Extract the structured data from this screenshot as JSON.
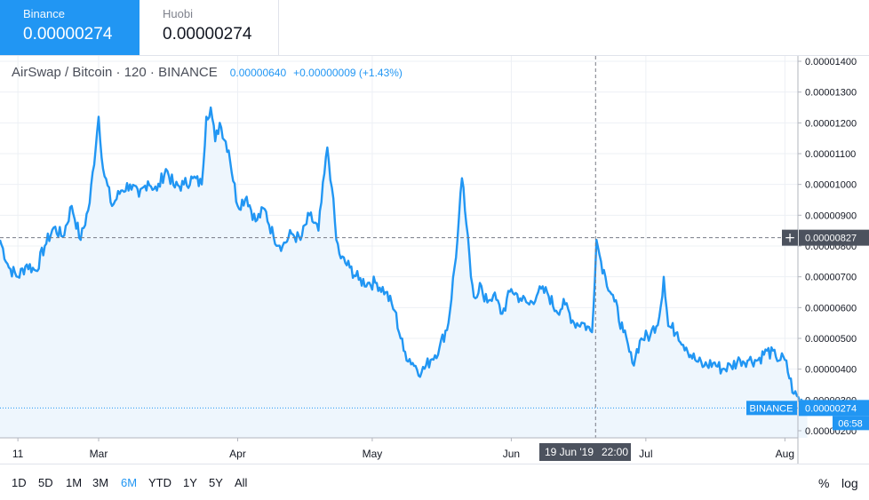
{
  "exchanges": [
    {
      "name": "Binance",
      "price": "0.00000274",
      "active": true
    },
    {
      "name": "Huobi",
      "price": "0.00000274",
      "active": false
    }
  ],
  "legend": {
    "symbol": "AirSwap / Bitcoin · 120 · BINANCE",
    "value": "0.00000640",
    "change": "+0.00000009 (+1.43%)"
  },
  "ranges": [
    "1D",
    "5D",
    "1M",
    "3M",
    "6M",
    "YTD",
    "1Y",
    "5Y",
    "All"
  ],
  "active_range": "6M",
  "right_buttons": {
    "percent": "%",
    "log": "log"
  },
  "colors": {
    "accent": "#2196f3",
    "dark_label": "#4c525e"
  },
  "icons": {
    "crosshair": "crosshair-plus-icon"
  },
  "chart_data": {
    "type": "area",
    "title": "AirSwap / Bitcoin · 120 · BINANCE",
    "xlabel": "",
    "ylabel": "",
    "x_ticks": [
      "11",
      "Mar",
      "Apr",
      "May",
      "Jun",
      "Jul",
      "Aug"
    ],
    "y_ticks": [
      "0.00000200",
      "0.00000300",
      "0.00000400",
      "0.00000500",
      "0.00000600",
      "0.00000700",
      "0.00000800",
      "0.00000900",
      "0.00001000",
      "0.00001100",
      "0.00001200",
      "0.00001300",
      "0.00001400"
    ],
    "ylim": [
      1.95e-06,
      1.43e-05
    ],
    "grid": true,
    "crosshair": {
      "date": "19 Jun '19",
      "time": "22:00",
      "price": "0.00000827",
      "plus": "+"
    },
    "last_price": {
      "label": "BINANCE",
      "price": "0.00000274",
      "countdown": "06:58"
    },
    "series": [
      {
        "x": [
          "2019-02-07",
          "2019-02-09",
          "2019-02-11",
          "2019-02-13",
          "2019-02-15",
          "2019-02-17",
          "2019-02-19",
          "2019-02-21",
          "2019-02-23",
          "2019-02-25",
          "2019-02-27",
          "2019-03-01",
          "2019-03-02",
          "2019-03-04",
          "2019-03-06",
          "2019-03-08",
          "2019-03-10",
          "2019-03-12",
          "2019-03-14",
          "2019-03-16",
          "2019-03-18",
          "2019-03-20",
          "2019-03-22",
          "2019-03-24",
          "2019-03-25",
          "2019-03-26",
          "2019-03-27",
          "2019-03-28",
          "2019-03-30",
          "2019-04-01",
          "2019-04-03",
          "2019-04-05",
          "2019-04-07",
          "2019-04-09",
          "2019-04-11",
          "2019-04-13",
          "2019-04-15",
          "2019-04-17",
          "2019-04-19",
          "2019-04-21",
          "2019-04-22",
          "2019-04-23",
          "2019-04-24",
          "2019-04-26",
          "2019-04-28",
          "2019-04-30",
          "2019-05-02",
          "2019-05-04",
          "2019-05-06",
          "2019-05-08",
          "2019-05-10",
          "2019-05-12",
          "2019-05-14",
          "2019-05-16",
          "2019-05-18",
          "2019-05-20",
          "2019-05-21",
          "2019-05-22",
          "2019-05-23",
          "2019-05-24",
          "2019-05-25",
          "2019-05-26",
          "2019-05-28",
          "2019-05-30",
          "2019-06-01",
          "2019-06-03",
          "2019-06-05",
          "2019-06-07",
          "2019-06-09",
          "2019-06-11",
          "2019-06-13",
          "2019-06-15",
          "2019-06-17",
          "2019-06-19",
          "2019-06-20",
          "2019-06-21",
          "2019-06-22",
          "2019-06-24",
          "2019-06-26",
          "2019-06-28",
          "2019-06-30",
          "2019-07-02",
          "2019-07-04",
          "2019-07-05",
          "2019-07-06",
          "2019-07-08",
          "2019-07-10",
          "2019-07-12",
          "2019-07-14",
          "2019-07-16",
          "2019-07-18",
          "2019-07-20",
          "2019-07-22",
          "2019-07-24",
          "2019-07-26",
          "2019-07-28",
          "2019-07-30",
          "2019-08-01",
          "2019-08-03",
          "2019-08-05",
          "2019-08-06"
        ],
        "y": [
          8.2,
          7.3,
          7.0,
          7.4,
          7.2,
          8.0,
          8.6,
          8.3,
          9.3,
          8.2,
          9.4,
          12.2,
          10.5,
          9.3,
          9.8,
          10.0,
          9.6,
          10.1,
          9.8,
          10.5,
          9.9,
          10.0,
          10.2,
          10.0,
          12.2,
          12.5,
          11.4,
          12.0,
          11.1,
          9.3,
          9.6,
          8.8,
          9.2,
          8.3,
          8.0,
          8.4,
          8.2,
          9.0,
          8.5,
          11.2,
          9.9,
          8.2,
          7.6,
          7.3,
          6.9,
          6.8,
          6.8,
          6.5,
          5.9,
          4.6,
          4.2,
          3.9,
          4.3,
          4.7,
          5.5,
          8.2,
          10.2,
          8.7,
          7.0,
          6.3,
          6.8,
          6.2,
          6.4,
          5.8,
          6.6,
          6.3,
          6.1,
          6.5,
          6.5,
          5.9,
          6.1,
          5.5,
          5.5,
          5.2,
          8.2,
          7.5,
          7.0,
          6.2,
          5.2,
          4.2,
          5.0,
          5.1,
          5.7,
          7.0,
          5.4,
          5.2,
          4.7,
          4.3,
          4.1,
          4.2,
          4.0,
          4.1,
          4.3,
          4.3,
          4.3,
          4.6,
          4.4,
          4.3,
          3.2,
          2.9,
          2.74
        ]
      }
    ]
  }
}
